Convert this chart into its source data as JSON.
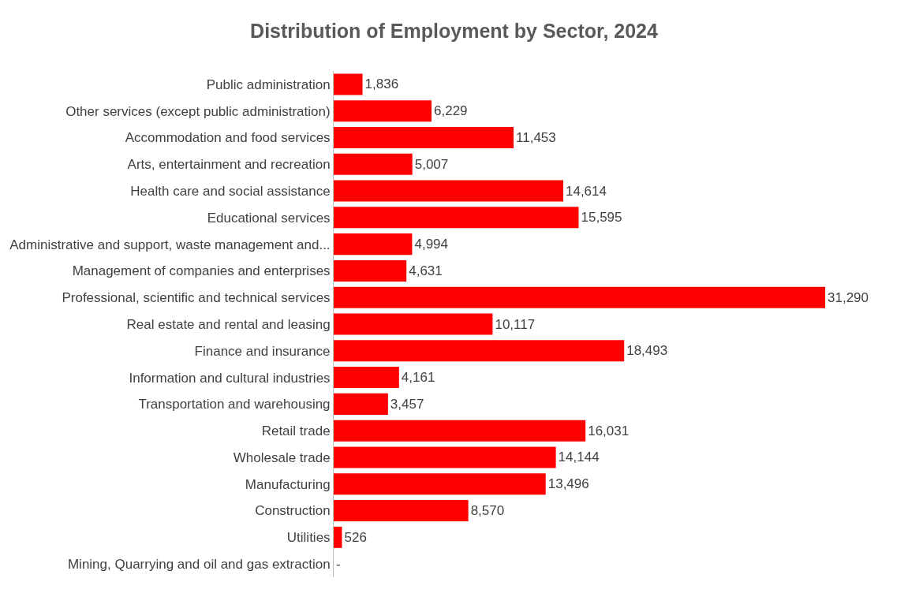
{
  "chart_data": {
    "type": "bar",
    "orientation": "horizontal",
    "title": "Distribution of Employment by Sector, 2024",
    "categories": [
      "Public administration",
      "Other services (except public administration)",
      "Accommodation and food services",
      "Arts, entertainment and recreation",
      "Health care and social assistance",
      "Educational services",
      "Administrative and support, waste management and...",
      "Management of companies and enterprises",
      "Professional, scientific and technical services",
      "Real estate and rental and leasing",
      "Finance and insurance",
      "Information and cultural industries",
      "Transportation and warehousing",
      "Retail trade",
      "Wholesale trade",
      "Manufacturing",
      "Construction",
      "Utilities",
      "Mining, Quarrying and oil and gas extraction"
    ],
    "values": [
      1836,
      6229,
      11453,
      5007,
      14614,
      15595,
      4994,
      4631,
      31290,
      10117,
      18493,
      4161,
      3457,
      16031,
      14144,
      13496,
      8570,
      526,
      0
    ],
    "value_labels": [
      "1,836",
      "6,229",
      "11,453",
      "5,007",
      "14,614",
      "15,595",
      "4,994",
      "4,631",
      "31,290",
      "10,117",
      "18,493",
      "4,161",
      "3,457",
      "16,031",
      "14,144",
      "13,496",
      "8,570",
      "526",
      "-"
    ],
    "color": "#ff0000"
  }
}
